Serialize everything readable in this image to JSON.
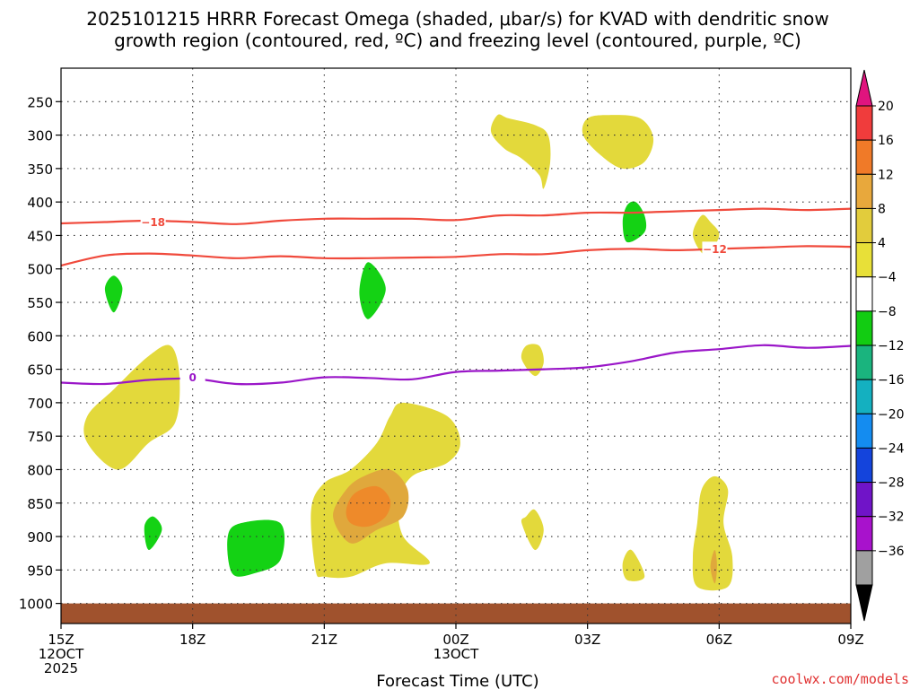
{
  "chart_data": {
    "type": "heatmap",
    "title_line1": "2025101215 HRRR Forecast Omega (shaded, μbar/s) for KVAD with dendritic snow",
    "title_line2": "growth region (contoured, red, ºC) and freezing level (contoured, purple, ºC)",
    "xlabel": "Forecast Time (UTC)",
    "credit": "coolwx.com/models",
    "x_range": [
      0,
      18
    ],
    "x_ticks": [
      {
        "x": 0,
        "line1": "15Z",
        "line2": "12OCT",
        "line3": "2025"
      },
      {
        "x": 3,
        "line1": "18Z",
        "line2": "",
        "line3": ""
      },
      {
        "x": 6,
        "line1": "21Z",
        "line2": "",
        "line3": ""
      },
      {
        "x": 9,
        "line1": "00Z",
        "line2": "13OCT",
        "line3": ""
      },
      {
        "x": 12,
        "line1": "03Z",
        "line2": "",
        "line3": ""
      },
      {
        "x": 15,
        "line1": "06Z",
        "line2": "",
        "line3": ""
      },
      {
        "x": 18,
        "line1": "09Z",
        "line2": "",
        "line3": ""
      }
    ],
    "y_range_hpa": [
      200,
      1030
    ],
    "y_ticks": [
      "250",
      "300",
      "350",
      "400",
      "450",
      "500",
      "550",
      "600",
      "650",
      "700",
      "750",
      "800",
      "850",
      "900",
      "950",
      "1000"
    ],
    "colorbar_labels": [
      "20",
      "16",
      "12",
      "8",
      "4",
      "−4",
      "−8",
      "−12",
      "−16",
      "−20",
      "−24",
      "−28",
      "−32",
      "−36"
    ],
    "colorbar_colors": [
      "#f03c3c",
      "#f07a28",
      "#e8a83c",
      "#e2cc3c",
      "#e8e038",
      "#ffffff",
      "#12cc12",
      "#1ab47e",
      "#14b0c0",
      "#148cf0",
      "#1444dc",
      "#7014c8",
      "#a812cc",
      "#a0a0a0"
    ],
    "colorbar_top_color": "#e0147e",
    "colorbar_bottom_color": "#000000",
    "colors": {
      "yellow": "#e3d93b",
      "orange_light": "#e0a83c",
      "orange": "#ee8a2a",
      "green": "#14d214",
      "red": "#f04a3c",
      "purple": "#9a16c8",
      "ground": "#a0522d"
    },
    "contours": [
      {
        "name": "minus-18-line",
        "color": "red",
        "label": "−18",
        "label_at": [
          2.1,
          430
        ],
        "points": [
          [
            0,
            432
          ],
          [
            1,
            430
          ],
          [
            2,
            428
          ],
          [
            3,
            430
          ],
          [
            4,
            433
          ],
          [
            5,
            428
          ],
          [
            6,
            425
          ],
          [
            7,
            425
          ],
          [
            8,
            425
          ],
          [
            9,
            427
          ],
          [
            10,
            420
          ],
          [
            11,
            420
          ],
          [
            12,
            416
          ],
          [
            13,
            416
          ],
          [
            14,
            414
          ],
          [
            15,
            412
          ],
          [
            16,
            410
          ],
          [
            17,
            412
          ],
          [
            18,
            410
          ]
        ]
      },
      {
        "name": "minus-12-line",
        "color": "red",
        "label": "−12",
        "label_at": [
          14.9,
          470
        ],
        "points": [
          [
            0,
            495
          ],
          [
            1,
            480
          ],
          [
            2,
            477
          ],
          [
            3,
            480
          ],
          [
            4,
            484
          ],
          [
            5,
            481
          ],
          [
            6,
            484
          ],
          [
            7,
            484
          ],
          [
            8,
            483
          ],
          [
            9,
            482
          ],
          [
            10,
            478
          ],
          [
            11,
            478
          ],
          [
            12,
            472
          ],
          [
            13,
            470
          ],
          [
            14,
            472
          ],
          [
            15,
            470
          ],
          [
            16,
            468
          ],
          [
            17,
            466
          ],
          [
            18,
            467
          ]
        ]
      },
      {
        "name": "freezing-level-line",
        "color": "purple",
        "label": "0",
        "label_at": [
          3.0,
          662
        ],
        "points": [
          [
            0,
            670
          ],
          [
            1,
            672
          ],
          [
            2,
            666
          ],
          [
            3,
            664
          ],
          [
            4,
            672
          ],
          [
            5,
            670
          ],
          [
            6,
            662
          ],
          [
            7,
            663
          ],
          [
            8,
            665
          ],
          [
            9,
            654
          ],
          [
            10,
            652
          ],
          [
            11,
            650
          ],
          [
            12,
            647
          ],
          [
            13,
            638
          ],
          [
            14,
            625
          ],
          [
            15,
            620
          ],
          [
            16,
            614
          ],
          [
            17,
            618
          ],
          [
            18,
            615
          ]
        ]
      }
    ],
    "regions": [
      {
        "name": "omega-yellow-upper-a",
        "color": "yellow",
        "points": [
          [
            9.95,
            270
          ],
          [
            9.8,
            295
          ],
          [
            10.1,
            320
          ],
          [
            10.5,
            335
          ],
          [
            10.9,
            360
          ],
          [
            11.0,
            380
          ],
          [
            11.15,
            340
          ],
          [
            11.1,
            300
          ],
          [
            10.8,
            285
          ],
          [
            10.2,
            275
          ]
        ]
      },
      {
        "name": "omega-yellow-upper-b",
        "color": "yellow",
        "points": [
          [
            12.0,
            275
          ],
          [
            11.9,
            300
          ],
          [
            12.3,
            330
          ],
          [
            12.8,
            350
          ],
          [
            13.3,
            340
          ],
          [
            13.5,
            305
          ],
          [
            13.2,
            275
          ],
          [
            12.5,
            270
          ]
        ]
      },
      {
        "name": "omega-yellow-mid-right",
        "color": "yellow",
        "points": [
          [
            14.6,
            420
          ],
          [
            14.4,
            450
          ],
          [
            14.7,
            480
          ],
          [
            15.0,
            450
          ],
          [
            14.8,
            430
          ]
        ]
      },
      {
        "name": "omega-yellow-left",
        "color": "yellow",
        "points": [
          [
            1.3,
            800
          ],
          [
            0.6,
            760
          ],
          [
            0.6,
            720
          ],
          [
            1.2,
            680
          ],
          [
            2.0,
            630
          ],
          [
            2.5,
            615
          ],
          [
            2.7,
            660
          ],
          [
            2.6,
            730
          ],
          [
            2.0,
            760
          ]
        ]
      },
      {
        "name": "omega-yellow-small-a",
        "color": "yellow",
        "points": [
          [
            10.6,
            615
          ],
          [
            10.5,
            635
          ],
          [
            10.8,
            660
          ],
          [
            11.0,
            640
          ],
          [
            10.9,
            615
          ]
        ]
      },
      {
        "name": "omega-yellow-center",
        "color": "yellow",
        "points": [
          [
            5.8,
            950
          ],
          [
            5.7,
            860
          ],
          [
            6.0,
            820
          ],
          [
            6.6,
            800
          ],
          [
            7.2,
            760
          ],
          [
            7.5,
            720
          ],
          [
            7.8,
            700
          ],
          [
            8.8,
            720
          ],
          [
            9.1,
            760
          ],
          [
            8.8,
            790
          ],
          [
            8.0,
            810
          ],
          [
            7.7,
            850
          ],
          [
            7.8,
            900
          ],
          [
            8.4,
            940
          ],
          [
            7.4,
            940
          ],
          [
            6.6,
            960
          ],
          [
            6.0,
            960
          ]
        ]
      },
      {
        "name": "omega-orange-light-center",
        "color": "orange_light",
        "points": [
          [
            6.6,
            910
          ],
          [
            6.2,
            870
          ],
          [
            6.5,
            830
          ],
          [
            6.9,
            810
          ],
          [
            7.5,
            800
          ],
          [
            7.9,
            830
          ],
          [
            7.8,
            870
          ],
          [
            7.2,
            890
          ]
        ]
      },
      {
        "name": "omega-orange-center",
        "color": "orange",
        "points": [
          [
            6.6,
            880
          ],
          [
            6.5,
            860
          ],
          [
            6.7,
            835
          ],
          [
            7.2,
            825
          ],
          [
            7.5,
            845
          ],
          [
            7.4,
            870
          ],
          [
            7.0,
            885
          ]
        ]
      },
      {
        "name": "omega-yellow-small-b",
        "color": "yellow",
        "points": [
          [
            10.6,
            870
          ],
          [
            10.5,
            880
          ],
          [
            10.8,
            920
          ],
          [
            11.0,
            890
          ],
          [
            10.8,
            860
          ]
        ]
      },
      {
        "name": "omega-yellow-small-c",
        "color": "yellow",
        "points": [
          [
            12.8,
            940
          ],
          [
            12.9,
            965
          ],
          [
            13.3,
            960
          ],
          [
            13.0,
            920
          ]
        ]
      },
      {
        "name": "omega-yellow-lower-right",
        "color": "yellow",
        "points": [
          [
            14.5,
            975
          ],
          [
            14.4,
            930
          ],
          [
            14.5,
            880
          ],
          [
            14.6,
            830
          ],
          [
            14.9,
            810
          ],
          [
            15.2,
            830
          ],
          [
            15.1,
            880
          ],
          [
            15.3,
            930
          ],
          [
            15.2,
            975
          ]
        ]
      },
      {
        "name": "omega-orange-small-right",
        "color": "orange_light",
        "points": [
          [
            14.8,
            945
          ],
          [
            14.9,
            920
          ],
          [
            14.95,
            945
          ],
          [
            14.9,
            970
          ]
        ]
      },
      {
        "name": "omega-green-upper-right",
        "color": "green",
        "points": [
          [
            12.9,
            460
          ],
          [
            12.8,
            430
          ],
          [
            12.9,
            405
          ],
          [
            13.1,
            400
          ],
          [
            13.3,
            420
          ],
          [
            13.3,
            445
          ]
        ]
      },
      {
        "name": "omega-green-left",
        "color": "green",
        "points": [
          [
            1.0,
            530
          ],
          [
            1.2,
            510
          ],
          [
            1.4,
            530
          ],
          [
            1.2,
            565
          ]
        ]
      },
      {
        "name": "omega-green-mid",
        "color": "green",
        "points": [
          [
            6.8,
            535
          ],
          [
            7.0,
            490
          ],
          [
            7.4,
            530
          ],
          [
            7.0,
            575
          ]
        ]
      },
      {
        "name": "omega-green-lower-left",
        "color": "green",
        "points": [
          [
            1.9,
            885
          ],
          [
            2.1,
            870
          ],
          [
            2.3,
            890
          ],
          [
            2.0,
            920
          ]
        ]
      },
      {
        "name": "omega-green-lower",
        "color": "green",
        "points": [
          [
            3.8,
            900
          ],
          [
            4.1,
            880
          ],
          [
            5.0,
            880
          ],
          [
            5.0,
            935
          ],
          [
            4.4,
            955
          ],
          [
            3.9,
            955
          ]
        ]
      }
    ],
    "ground_hpa": [
      1000,
      1030
    ]
  }
}
